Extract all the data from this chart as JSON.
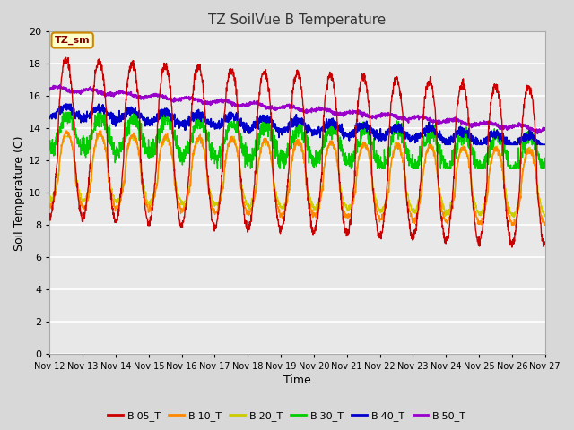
{
  "title": "TZ SoilVue B Temperature",
  "xlabel": "Time",
  "ylabel": "Soil Temperature (C)",
  "ylim": [
    0,
    20
  ],
  "yticks": [
    0,
    2,
    4,
    6,
    8,
    10,
    12,
    14,
    16,
    18,
    20
  ],
  "series_colors": {
    "B-05_T": "#cc0000",
    "B-10_T": "#ff8800",
    "B-20_T": "#cccc00",
    "B-30_T": "#00cc00",
    "B-40_T": "#0000cc",
    "B-50_T": "#9900cc"
  },
  "legend_labels": [
    "B-05_T",
    "B-10_T",
    "B-20_T",
    "B-30_T",
    "B-40_T",
    "B-50_T"
  ],
  "outer_bg": "#d8d8d8",
  "plot_bg": "#e8e8e8",
  "grid_color": "#ffffff",
  "annotation_text": "TZ_sm",
  "annotation_bg": "#ffffcc",
  "annotation_border": "#cc8800"
}
